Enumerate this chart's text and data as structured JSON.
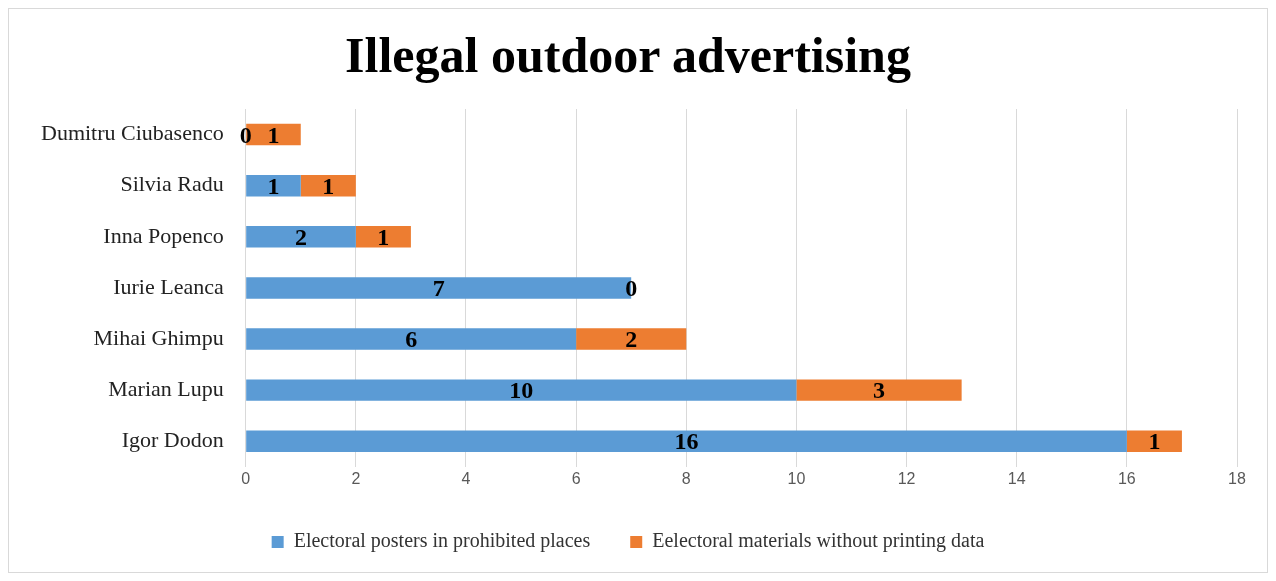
{
  "chart_data": {
    "type": "bar",
    "orientation": "horizontal",
    "stacked": true,
    "title": "Illegal outdoor advertising",
    "categories": [
      "Dumitru Ciubasenco",
      "Silvia Radu",
      "Inna Popenco",
      "Iurie Leanca",
      "Mihai Ghimpu",
      "Marian Lupu",
      "Igor Dodon"
    ],
    "series": [
      {
        "name": "Electoral posters in prohibited places",
        "color": "#5b9bd5",
        "values": [
          0,
          1,
          2,
          7,
          6,
          10,
          16
        ]
      },
      {
        "name": "Eelectoral materials without printing data",
        "color": "#ed7d31",
        "values": [
          1,
          1,
          1,
          0,
          2,
          3,
          1
        ]
      }
    ],
    "xlim": [
      0,
      18
    ],
    "xticks": [
      0,
      2,
      4,
      6,
      8,
      10,
      12,
      14,
      16,
      18
    ],
    "grid": "x",
    "legend": "bottom",
    "data_labels": true
  }
}
